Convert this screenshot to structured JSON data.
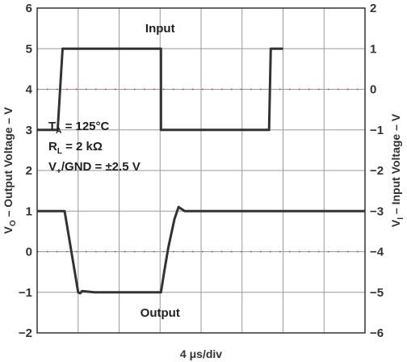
{
  "chart_data": {
    "type": "line",
    "title": "",
    "xlabel": "4 μs/div",
    "ylabel_left": {
      "main": "V",
      "sub": "O",
      "rest": " – Output Voltage – V"
    },
    "ylabel_right": {
      "main": "V",
      "sub": "I",
      "rest": " – Input Voltage – V"
    },
    "x_divisions": 8,
    "ylim_left": [
      -2,
      6
    ],
    "ylim_right": [
      -6,
      2
    ],
    "yticks_left": [
      "6",
      "5",
      "4",
      "3",
      "2",
      "1",
      "0",
      "−1",
      "−2"
    ],
    "yticks_right": [
      "2",
      "1",
      "0",
      "−1",
      "−2",
      "−3",
      "−4",
      "−5",
      "−6"
    ],
    "grid": true,
    "series": [
      {
        "name": "Input",
        "axis": "right",
        "color": "#333333",
        "x": [
          0.0,
          0.5,
          0.62,
          0.66,
          3.02,
          3.02,
          5.66,
          5.7,
          5.82,
          6.0
        ],
        "y": [
          -1,
          -1,
          1,
          1,
          1,
          -1,
          -1,
          1,
          1,
          1
        ]
      },
      {
        "name": "Output",
        "axis": "left",
        "color": "#333333",
        "x": [
          0.0,
          0.55,
          0.67,
          1.0,
          1.05,
          1.1,
          1.4,
          2.0,
          2.48,
          2.5,
          3.02,
          3.1,
          3.2,
          3.35,
          3.45,
          3.6,
          4.0,
          4.5,
          5.0,
          5.6,
          5.75,
          6.0,
          6.1,
          6.2,
          6.3,
          6.45,
          6.6,
          6.7,
          6.78,
          7.0,
          7.5,
          7.9,
          8.0
        ],
        "y": [
          1.0,
          1.0,
          1.0,
          -1.0,
          -1.02,
          -0.97,
          -1.0,
          -1.0,
          -1.0,
          -1.0,
          -1.0,
          -0.5,
          0.1,
          0.8,
          1.1,
          1.0,
          1.0,
          1.0,
          1.0,
          1.0,
          1.0,
          1.0,
          1.0,
          1.0,
          1.0,
          1.0,
          1.0,
          1.0,
          1.0,
          1.0,
          1.0,
          1.0,
          1.0
        ]
      }
    ],
    "zero_markers_left": [
      0
    ],
    "zero_markers_right": [
      0
    ],
    "marker_color": "#c0392b",
    "annotations": {
      "input_label": "Input",
      "output_label": "Output",
      "conditions": [
        {
          "main": "T",
          "sub": "A",
          "rest": " = 125°C"
        },
        {
          "main": "R",
          "sub": "L",
          "rest": " = 2 kΩ"
        },
        {
          "main": "V",
          "sub": "+",
          "rest": "/GND = ±2.5 V"
        }
      ]
    }
  }
}
